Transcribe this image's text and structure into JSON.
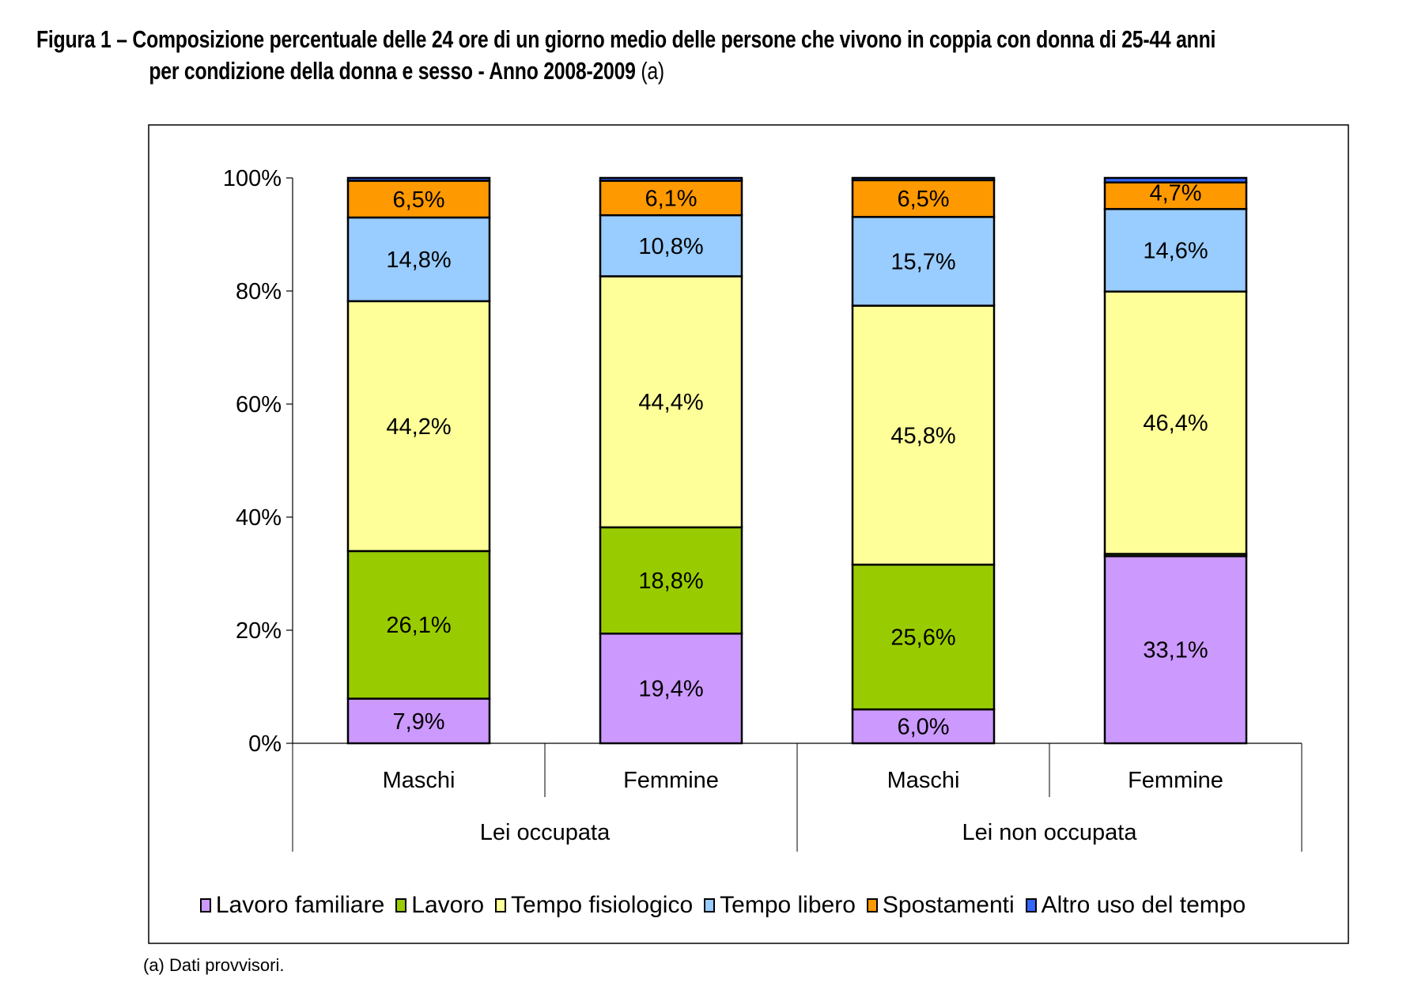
{
  "title": {
    "line1": "Figura 1 – Composizione percentuale delle 24 ore di un giorno medio delle persone che vivono in coppia con donna di 25-44 anni",
    "line2": "per condizione della donna e sesso - Anno 2008-2009",
    "suffix": "(a)"
  },
  "footnote": "(a) Dati provvisori.",
  "chart_data": {
    "type": "bar",
    "stacked": true,
    "ylim": [
      0,
      100
    ],
    "yticks": [
      "0%",
      "20%",
      "40%",
      "60%",
      "80%",
      "100%"
    ],
    "categories": [
      "Maschi",
      "Femmine",
      "Maschi",
      "Femmine"
    ],
    "groups": [
      "Lei occupata",
      "Lei non occupata"
    ],
    "legend_position": "bottom",
    "series": [
      {
        "name": "Lavoro familiare",
        "color": "#CC99FF",
        "values": [
          7.9,
          19.4,
          6.0,
          33.1
        ],
        "labels": [
          "7,9%",
          "19,4%",
          "6,0%",
          "33,1%"
        ]
      },
      {
        "name": "Lavoro",
        "color": "#99CC00",
        "values": [
          26.1,
          18.8,
          25.6,
          0.4
        ],
        "labels": [
          "26,1%",
          "18,8%",
          "25,6%",
          null
        ]
      },
      {
        "name": "Tempo fisiologico",
        "color": "#FFFF99",
        "values": [
          44.2,
          44.4,
          45.8,
          46.4
        ],
        "labels": [
          "44,2%",
          "44,4%",
          "45,8%",
          "46,4%"
        ]
      },
      {
        "name": "Tempo libero",
        "color": "#99CCFF",
        "values": [
          14.8,
          10.8,
          15.7,
          14.6
        ],
        "labels": [
          "14,8%",
          "10,8%",
          "15,7%",
          "14,6%"
        ]
      },
      {
        "name": "Spostamenti",
        "color": "#FF9900",
        "values": [
          6.5,
          6.1,
          6.5,
          4.7
        ],
        "labels": [
          "6,5%",
          "6,1%",
          "6,5%",
          "4,7%"
        ]
      },
      {
        "name": "Altro uso del tempo",
        "color": "#3366FF",
        "values": [
          0.5,
          0.5,
          0.4,
          0.8
        ],
        "labels": [
          null,
          null,
          null,
          null
        ]
      }
    ]
  }
}
